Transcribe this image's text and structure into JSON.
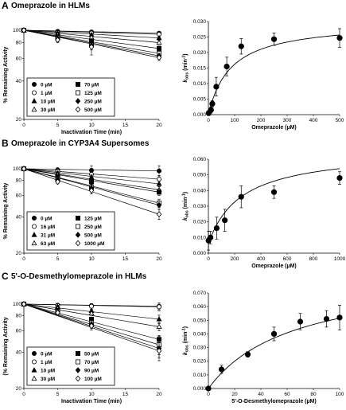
{
  "panels": [
    {
      "letter": "A",
      "title": "Omeprazole in HLMs",
      "left_chart": {
        "type": "line",
        "xlabel": "Inactivation Time (min)",
        "ylabel": "% Remaining Activity",
        "y_scale": "log",
        "xlim": [
          0,
          20
        ],
        "ylim": [
          20,
          100
        ],
        "x_ticks": [
          0,
          5,
          10,
          15,
          20
        ],
        "y_ticks": [
          20,
          40,
          60,
          80,
          100
        ],
        "x": [
          0,
          5,
          10,
          20
        ],
        "legend_columns": 2,
        "series": [
          {
            "name": "0 µM",
            "marker": "circle-filled",
            "values": [
              100,
              98,
              97,
              95
            ],
            "errors": [
              3,
              2,
              2,
              2
            ]
          },
          {
            "name": "1 µM",
            "marker": "circle-open",
            "values": [
              100,
              96,
              95,
              93
            ],
            "errors": [
              3,
              2,
              3,
              2
            ]
          },
          {
            "name": "10 µM",
            "marker": "triangle-filled",
            "values": [
              100,
              95,
              92,
              87
            ],
            "errors": [
              3,
              2,
              3,
              3
            ]
          },
          {
            "name": "30 µM",
            "marker": "triangle-open",
            "values": [
              100,
              92,
              88,
              80
            ],
            "errors": [
              3,
              3,
              4,
              3
            ]
          },
          {
            "name": "70 µM",
            "marker": "square-filled",
            "values": [
              100,
              89,
              82,
              72
            ],
            "errors": [
              3,
              3,
              4,
              3
            ]
          },
          {
            "name": "125 µM",
            "marker": "square-open",
            "values": [
              100,
              87,
              77,
              66
            ],
            "errors": [
              3,
              4,
              4,
              3
            ]
          },
          {
            "name": "250 µM",
            "marker": "diamond-filled",
            "values": [
              100,
              85,
              76,
              63
            ],
            "errors": [
              3,
              4,
              6,
              3
            ]
          },
          {
            "name": "500 µM",
            "marker": "diamond-open",
            "values": [
              100,
              84,
              74,
              61
            ],
            "errors": [
              3,
              4,
              10,
              3
            ]
          }
        ]
      },
      "right_chart": {
        "type": "scatter",
        "xlabel": "Omeprazole (µM)",
        "ylabel_main": "k",
        "ylabel_sub": "obs",
        "ylabel_tail": " (min",
        "ylabel_sup": "-1",
        "ylabel_close": ")",
        "xlim": [
          0,
          500
        ],
        "ylim": [
          0,
          0.03
        ],
        "x_ticks": [
          0,
          100,
          200,
          300,
          400,
          500
        ],
        "y_ticks": [
          "0.000",
          "0.005",
          "0.010",
          "0.015",
          "0.020",
          "0.025",
          "0.030"
        ],
        "y_tick_values": [
          0,
          0.005,
          0.01,
          0.015,
          0.02,
          0.025,
          0.03
        ],
        "points": [
          {
            "x": 1,
            "y": 0.0005,
            "err": 0.0008
          },
          {
            "x": 10,
            "y": 0.0015,
            "err": 0.001
          },
          {
            "x": 15,
            "y": 0.0035,
            "err": 0.001
          },
          {
            "x": 30,
            "y": 0.009,
            "err": 0.003
          },
          {
            "x": 70,
            "y": 0.0155,
            "err": 0.003
          },
          {
            "x": 125,
            "y": 0.022,
            "err": 0.0025
          },
          {
            "x": 250,
            "y": 0.0243,
            "err": 0.002
          },
          {
            "x": 500,
            "y": 0.0247,
            "err": 0.003
          }
        ],
        "fit": {
          "kinact": 0.03,
          "KI": 85
        }
      }
    },
    {
      "letter": "B",
      "title": "Omeprazole in CYP3A4 Supersomes",
      "left_chart": {
        "type": "line",
        "xlabel": "",
        "ylabel": "% Remaining Activity",
        "y_scale": "log",
        "xlim": [
          0,
          20
        ],
        "ylim": [
          20,
          100
        ],
        "x_ticks": [
          0,
          5,
          10,
          15,
          20
        ],
        "y_ticks": [
          20,
          40,
          60,
          80,
          100
        ],
        "x": [
          0,
          5,
          10,
          20
        ],
        "legend_columns": 2,
        "series": [
          {
            "name": "0 µM",
            "marker": "circle-filled",
            "values": [
              100,
              98,
              97,
              96
            ],
            "errors": [
              4,
              4,
              9,
              10
            ]
          },
          {
            "name": "16 µM",
            "marker": "circle-open",
            "values": [
              100,
              95,
              90,
              82
            ],
            "errors": [
              4,
              3,
              4,
              6
            ]
          },
          {
            "name": "31 µM",
            "marker": "triangle-filled",
            "values": [
              100,
              92,
              85,
              75
            ],
            "errors": [
              4,
              3,
              4,
              4
            ]
          },
          {
            "name": "63 µM",
            "marker": "triangle-open",
            "values": [
              100,
              89,
              80,
              67
            ],
            "errors": [
              4,
              3,
              4,
              4
            ]
          },
          {
            "name": "125 µM",
            "marker": "square-filled",
            "values": [
              100,
              86,
              78,
              64
            ],
            "errors": [
              4,
              3,
              4,
              4
            ]
          },
          {
            "name": "250 µM",
            "marker": "square-open",
            "values": [
              100,
              82,
              70,
              52
            ],
            "errors": [
              4,
              3,
              4,
              4
            ]
          },
          {
            "name": "500 µM",
            "marker": "diamond-filled",
            "values": [
              100,
              81,
              69,
              50
            ],
            "errors": [
              4,
              3,
              4,
              4
            ]
          },
          {
            "name": "1000 µM",
            "marker": "diamond-open",
            "values": [
              100,
              78,
              66,
              42
            ],
            "errors": [
              4,
              3,
              4,
              4
            ]
          }
        ]
      },
      "right_chart": {
        "type": "scatter",
        "xlabel": "Omeprazole (µM)",
        "ylabel_main": "k",
        "ylabel_sub": "obs",
        "ylabel_tail": " (min",
        "ylabel_sup": "-1",
        "ylabel_close": ")",
        "xlim": [
          0,
          1000
        ],
        "ylim": [
          0,
          0.06
        ],
        "x_ticks": [
          0,
          200,
          400,
          600,
          800,
          1000
        ],
        "y_ticks": [
          "0.000",
          "0.010",
          "0.020",
          "0.030",
          "0.040",
          "0.050",
          "0.060"
        ],
        "y_tick_values": [
          0,
          0.01,
          0.02,
          0.03,
          0.04,
          0.05,
          0.06
        ],
        "points": [
          {
            "x": 1,
            "y": 0.008,
            "err": 0.006
          },
          {
            "x": 16,
            "y": 0.01,
            "err": 0.004
          },
          {
            "x": 63,
            "y": 0.016,
            "err": 0.007
          },
          {
            "x": 125,
            "y": 0.021,
            "err": 0.007
          },
          {
            "x": 250,
            "y": 0.036,
            "err": 0.007
          },
          {
            "x": 500,
            "y": 0.039,
            "err": 0.004
          },
          {
            "x": 1000,
            "y": 0.048,
            "err": 0.004
          }
        ],
        "fit": {
          "kinact": 0.06,
          "KI": 250,
          "offset": 0.006
        }
      }
    },
    {
      "letter": "C",
      "title": "5'-O-Desmethylomeprazole in HLMs",
      "left_chart": {
        "type": "line",
        "xlabel": "Inactivation Time (min)",
        "ylabel": "(% Remaining Activity",
        "y_scale": "log",
        "xlim": [
          0,
          20
        ],
        "ylim": [
          20,
          100
        ],
        "x_ticks": [
          0,
          5,
          10,
          15,
          20
        ],
        "y_ticks": [
          20,
          40,
          60,
          80,
          100
        ],
        "x": [
          0,
          5,
          10,
          20
        ],
        "legend_columns": 2,
        "series": [
          {
            "name": "0 µM",
            "marker": "circle-filled",
            "values": [
              100,
              98,
              97,
              96
            ],
            "errors": [
              3,
              3,
              3,
              6
            ]
          },
          {
            "name": "1 µM",
            "marker": "circle-open",
            "values": [
              100,
              97,
              96,
              95
            ],
            "errors": [
              3,
              4,
              5,
              7
            ]
          },
          {
            "name": "10 µM",
            "marker": "triangle-filled",
            "values": [
              100,
              95,
              88,
              75
            ],
            "errors": [
              3,
              3,
              3,
              6
            ]
          },
          {
            "name": "30 µM",
            "marker": "triangle-open",
            "values": [
              100,
              92,
              84,
              65
            ],
            "errors": [
              3,
              3,
              3,
              5
            ]
          },
          {
            "name": "50 µM",
            "marker": "square-filled",
            "values": [
              100,
              89,
              75,
              51
            ],
            "errors": [
              3,
              3,
              3,
              4
            ]
          },
          {
            "name": "70 µM",
            "marker": "square-open",
            "values": [
              100,
              87,
              70,
              46
            ],
            "errors": [
              3,
              3,
              5,
              8
            ]
          },
          {
            "name": "90 µM",
            "marker": "diamond-filled",
            "values": [
              100,
              86,
              68,
              43
            ],
            "errors": [
              3,
              3,
              5,
              7
            ]
          },
          {
            "name": "100 µM",
            "marker": "diamond-open",
            "values": [
              100,
              85,
              66,
              41
            ],
            "errors": [
              3,
              3,
              5,
              7
            ]
          }
        ]
      },
      "right_chart": {
        "type": "scatter",
        "xlabel": "5'-O-Desmethylomeprazole (µM)",
        "ylabel_main": "k",
        "ylabel_sub": "obs",
        "ylabel_tail": " (min",
        "ylabel_sup": "-1",
        "ylabel_close": ")",
        "xlim": [
          0,
          100
        ],
        "ylim": [
          0,
          0.07
        ],
        "x_ticks": [
          0,
          20,
          40,
          60,
          80,
          100
        ],
        "y_ticks": [
          "0.000",
          "0.010",
          "0.020",
          "0.030",
          "0.040",
          "0.050",
          "0.060",
          "0.070"
        ],
        "y_tick_values": [
          0,
          0.01,
          0.02,
          0.03,
          0.04,
          0.05,
          0.06,
          0.07
        ],
        "points": [
          {
            "x": 0,
            "y": 0.0,
            "err": 0.001
          },
          {
            "x": 10,
            "y": 0.014,
            "err": 0.003
          },
          {
            "x": 30,
            "y": 0.025,
            "err": 0.002
          },
          {
            "x": 50,
            "y": 0.04,
            "err": 0.005
          },
          {
            "x": 70,
            "y": 0.049,
            "err": 0.006
          },
          {
            "x": 90,
            "y": 0.051,
            "err": 0.006
          },
          {
            "x": 100,
            "y": 0.052,
            "err": 0.009
          }
        ],
        "fit": {
          "kinact": 0.085,
          "KI": 65
        }
      }
    }
  ]
}
